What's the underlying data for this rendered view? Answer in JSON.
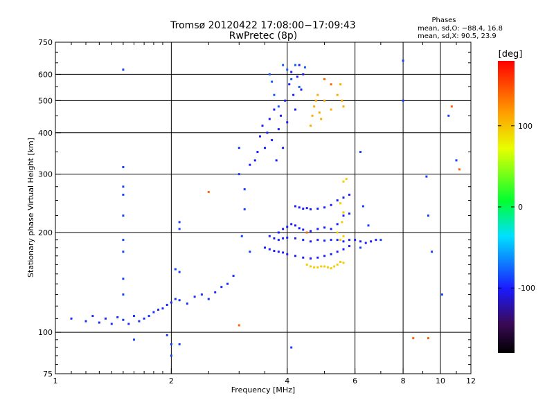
{
  "header": {
    "title": "Tromsø 20120422 17:08:00−17:09:43",
    "subtitle": "RwPretec (8p)",
    "phases_title": "Phases",
    "phases_o": "mean, sd,O: −88.4, 16.8",
    "phases_x": "mean, sd,X: 90.5, 23.9"
  },
  "chart_data": {
    "type": "scatter",
    "title": "Tromsø 20120422 17:08:00−17:09:43",
    "subtitle": "RwPretec (8p)",
    "xlabel": "Frequency [MHz]",
    "ylabel": "Stationary phase Virtual Height [km]",
    "xscale": "log",
    "yscale": "log",
    "xlim": [
      1,
      12
    ],
    "ylim": [
      75,
      750
    ],
    "grid": true,
    "x_ticks": [
      1,
      2,
      4,
      6,
      8,
      10,
      12
    ],
    "y_ticks": [
      75,
      100,
      200,
      300,
      400,
      500,
      600,
      750
    ],
    "colorbar": {
      "label": "[deg]",
      "ticks": [
        100,
        0,
        -100
      ],
      "range": [
        -180,
        180
      ]
    },
    "series": [
      {
        "trace": "low-E",
        "phase": -95,
        "points": [
          [
            1.1,
            110
          ],
          [
            1.2,
            108
          ],
          [
            1.25,
            112
          ],
          [
            1.3,
            107
          ],
          [
            1.35,
            110
          ],
          [
            1.4,
            106
          ],
          [
            1.45,
            111
          ],
          [
            1.5,
            109
          ],
          [
            1.55,
            106
          ],
          [
            1.6,
            112
          ],
          [
            1.65,
            108
          ],
          [
            1.7,
            110
          ],
          [
            1.75,
            112
          ],
          [
            1.8,
            115
          ],
          [
            1.85,
            117
          ],
          [
            1.9,
            118
          ],
          [
            1.95,
            121
          ],
          [
            2.0,
            123
          ],
          [
            2.05,
            126
          ],
          [
            2.1,
            125
          ],
          [
            2.2,
            122
          ],
          [
            2.3,
            128
          ],
          [
            2.4,
            130
          ],
          [
            2.5,
            126
          ],
          [
            2.6,
            132
          ],
          [
            2.7,
            137
          ],
          [
            2.8,
            140
          ],
          [
            2.9,
            148
          ]
        ]
      },
      {
        "trace": "F-blob",
        "phase": -100,
        "points": [
          [
            3.2,
            320
          ],
          [
            3.3,
            330
          ],
          [
            3.35,
            350
          ],
          [
            3.4,
            390
          ],
          [
            3.45,
            420
          ],
          [
            3.5,
            360
          ],
          [
            3.55,
            400
          ],
          [
            3.6,
            440
          ],
          [
            3.65,
            380
          ],
          [
            3.7,
            470
          ],
          [
            3.75,
            330
          ],
          [
            3.8,
            410
          ],
          [
            3.85,
            450
          ],
          [
            3.9,
            360
          ],
          [
            3.95,
            500
          ],
          [
            4.0,
            430
          ],
          [
            4.05,
            560
          ],
          [
            4.1,
            610
          ],
          [
            4.15,
            520
          ],
          [
            4.2,
            470
          ],
          [
            4.25,
            590
          ],
          [
            4.3,
            640
          ],
          [
            4.35,
            540
          ],
          [
            4.4,
            600
          ]
        ]
      },
      {
        "trace": "F-blob-upper",
        "phase": -80,
        "points": [
          [
            3.6,
            600
          ],
          [
            3.65,
            570
          ],
          [
            3.7,
            520
          ],
          [
            3.8,
            480
          ],
          [
            3.9,
            640
          ],
          [
            4.0,
            620
          ],
          [
            4.1,
            580
          ],
          [
            4.2,
            640
          ],
          [
            4.3,
            550
          ],
          [
            4.45,
            630
          ]
        ]
      },
      {
        "trace": "F-X",
        "phase": 110,
        "points": [
          [
            4.6,
            420
          ],
          [
            4.65,
            450
          ],
          [
            4.7,
            480
          ],
          [
            4.75,
            500
          ],
          [
            4.8,
            520
          ],
          [
            4.85,
            460
          ],
          [
            4.9,
            440
          ],
          [
            5.0,
            500
          ],
          [
            5.2,
            470
          ],
          [
            5.4,
            520
          ],
          [
            5.5,
            560
          ],
          [
            5.55,
            500
          ],
          [
            5.6,
            480
          ]
        ]
      },
      {
        "trace": "mid-240",
        "phase": -100,
        "points": [
          [
            4.2,
            240
          ],
          [
            4.3,
            238
          ],
          [
            4.4,
            236
          ],
          [
            4.5,
            237
          ],
          [
            4.6,
            235
          ],
          [
            4.8,
            236
          ],
          [
            5.0,
            238
          ],
          [
            5.2,
            242
          ],
          [
            5.4,
            250
          ],
          [
            5.6,
            255
          ],
          [
            5.8,
            260
          ]
        ]
      },
      {
        "trace": "mid-205",
        "phase": -100,
        "points": [
          [
            3.8,
            200
          ],
          [
            3.9,
            205
          ],
          [
            4.0,
            208
          ],
          [
            4.1,
            212
          ],
          [
            4.2,
            210
          ],
          [
            4.3,
            206
          ],
          [
            4.4,
            204
          ],
          [
            4.6,
            202
          ],
          [
            4.8,
            205
          ],
          [
            5.0,
            207
          ],
          [
            5.2,
            205
          ],
          [
            5.4,
            212
          ],
          [
            5.6,
            225
          ],
          [
            5.8,
            228
          ]
        ]
      },
      {
        "trace": "mid-190",
        "phase": -100,
        "points": [
          [
            3.6,
            195
          ],
          [
            3.7,
            192
          ],
          [
            3.8,
            190
          ],
          [
            3.9,
            192
          ],
          [
            4.0,
            193
          ],
          [
            4.2,
            192
          ],
          [
            4.4,
            190
          ],
          [
            4.6,
            188
          ],
          [
            4.8,
            190
          ],
          [
            5.0,
            189
          ],
          [
            5.2,
            190
          ],
          [
            5.4,
            190
          ],
          [
            5.6,
            188
          ],
          [
            5.8,
            190
          ],
          [
            6.0,
            190
          ],
          [
            6.2,
            188
          ],
          [
            6.4,
            186
          ],
          [
            6.6,
            188
          ],
          [
            6.8,
            190
          ]
        ]
      },
      {
        "trace": "mid-175",
        "phase": -100,
        "points": [
          [
            3.5,
            180
          ],
          [
            3.6,
            178
          ],
          [
            3.7,
            176
          ],
          [
            3.8,
            175
          ],
          [
            3.9,
            174
          ],
          [
            4.0,
            172
          ],
          [
            4.2,
            170
          ],
          [
            4.4,
            168
          ],
          [
            4.6,
            167
          ],
          [
            4.8,
            168
          ],
          [
            5.0,
            170
          ],
          [
            5.2,
            172
          ],
          [
            5.4,
            175
          ],
          [
            5.6,
            178
          ],
          [
            5.8,
            182
          ]
        ]
      },
      {
        "trace": "X-lower",
        "phase": 95,
        "points": [
          [
            4.5,
            160
          ],
          [
            4.6,
            158
          ],
          [
            4.7,
            157
          ],
          [
            4.8,
            157
          ],
          [
            4.9,
            158
          ],
          [
            5.0,
            158
          ],
          [
            5.1,
            157
          ],
          [
            5.2,
            156
          ],
          [
            5.3,
            158
          ],
          [
            5.4,
            160
          ],
          [
            5.5,
            163
          ],
          [
            5.6,
            162
          ],
          [
            5.5,
            190
          ],
          [
            5.6,
            195
          ],
          [
            5.4,
            200
          ],
          [
            5.55,
            215
          ],
          [
            5.6,
            230
          ],
          [
            5.5,
            245
          ],
          [
            5.6,
            285
          ],
          [
            5.7,
            290
          ]
        ]
      },
      {
        "trace": "scatter",
        "phase": -90,
        "points": [
          [
            1.5,
            620
          ],
          [
            1.5,
            315
          ],
          [
            1.5,
            275
          ],
          [
            1.5,
            260
          ],
          [
            1.5,
            225
          ],
          [
            1.5,
            190
          ],
          [
            1.5,
            175
          ],
          [
            1.5,
            145
          ],
          [
            1.5,
            130
          ],
          [
            1.6,
            95
          ],
          [
            1.95,
            98
          ],
          [
            2.0,
            92
          ],
          [
            2.0,
            85
          ],
          [
            2.1,
            92
          ],
          [
            2.1,
            205
          ],
          [
            2.1,
            215
          ],
          [
            2.05,
            155
          ],
          [
            2.1,
            152
          ],
          [
            3.0,
            360
          ],
          [
            3.0,
            300
          ],
          [
            3.1,
            270
          ],
          [
            3.1,
            235
          ],
          [
            3.05,
            195
          ],
          [
            3.2,
            175
          ],
          [
            4.1,
            90
          ],
          [
            6.2,
            350
          ],
          [
            6.3,
            240
          ],
          [
            6.5,
            210
          ],
          [
            6.2,
            180
          ],
          [
            7.0,
            190
          ],
          [
            8.0,
            660
          ],
          [
            8.0,
            500
          ],
          [
            9.2,
            295
          ],
          [
            9.3,
            225
          ],
          [
            9.5,
            175
          ],
          [
            10.1,
            130
          ],
          [
            10.5,
            450
          ],
          [
            11.0,
            330
          ]
        ]
      },
      {
        "trace": "scatter-warm",
        "phase": 140,
        "points": [
          [
            2.5,
            265
          ],
          [
            3.0,
            105
          ],
          [
            4.5,
            200
          ],
          [
            5.0,
            580
          ],
          [
            5.2,
            560
          ],
          [
            8.5,
            96
          ],
          [
            9.3,
            96
          ],
          [
            10.7,
            480
          ],
          [
            11.2,
            310
          ]
        ]
      }
    ]
  }
}
